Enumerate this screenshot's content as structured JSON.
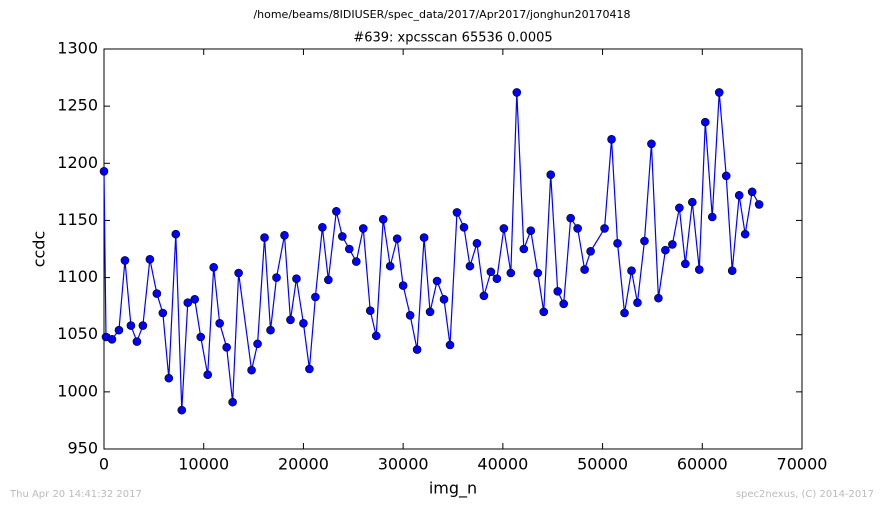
{
  "chart_data": {
    "type": "line",
    "suptitle": "/home/beams/8IDIUSER/spec_data/2017/Apr2017/jonghun20170418",
    "title": "#639: xpcsscan 65536 0.0005",
    "xlabel": "img_n",
    "ylabel": "ccdc",
    "footer_left": "Thu Apr 20 14:41:32 2017",
    "footer_right": "spec2nexus, (C) 2014-2017",
    "color": "#0000ff",
    "marker": "circle",
    "x": [
      0,
      200,
      800,
      1500,
      2100,
      2700,
      3300,
      3900,
      4600,
      5300,
      5900,
      6500,
      7200,
      7800,
      8400,
      9100,
      9700,
      10400,
      11000,
      11600,
      12300,
      12900,
      13500,
      14800,
      15400,
      16100,
      16700,
      17300,
      18100,
      18700,
      19300,
      20000,
      20600,
      21200,
      21900,
      22500,
      23300,
      23900,
      24600,
      25300,
      26000,
      26700,
      27300,
      28000,
      28700,
      29400,
      30000,
      30700,
      31400,
      32100,
      32700,
      33400,
      34100,
      34700,
      35400,
      36100,
      36700,
      37400,
      38100,
      38800,
      39400,
      40100,
      40800,
      41400,
      42100,
      42800,
      43500,
      44100,
      44800,
      45500,
      46100,
      46800,
      47500,
      48200,
      48800,
      50200,
      50900,
      51500,
      52200,
      52900,
      53500,
      54200,
      54900,
      55600,
      56300,
      57000,
      57700,
      58300,
      59000,
      59700,
      60300,
      61000,
      61700,
      62400,
      63000,
      63700,
      64300,
      65000,
      65700
    ],
    "values": [
      1193,
      1048,
      1046,
      1054,
      1115,
      1058,
      1044,
      1058,
      1116,
      1086,
      1069,
      1012,
      1138,
      984,
      1078,
      1081,
      1048,
      1015,
      1109,
      1060,
      1039,
      991,
      1104,
      1019,
      1042,
      1135,
      1054,
      1100,
      1137,
      1063,
      1099,
      1060,
      1020,
      1083,
      1144,
      1098,
      1158,
      1136,
      1125,
      1114,
      1143,
      1071,
      1049,
      1151,
      1110,
      1134,
      1093,
      1067,
      1037,
      1135,
      1070,
      1097,
      1081,
      1041,
      1157,
      1144,
      1110,
      1130,
      1084,
      1105,
      1099,
      1143,
      1104,
      1262,
      1125,
      1141,
      1104,
      1070,
      1190,
      1088,
      1077,
      1152,
      1143,
      1107,
      1123,
      1143,
      1221,
      1130,
      1069,
      1106,
      1078,
      1132,
      1217,
      1082,
      1124,
      1129,
      1161,
      1112,
      1166,
      1107,
      1236,
      1153,
      1262,
      1189,
      1106,
      1172,
      1138,
      1175,
      1164
    ],
    "xlim": [
      0,
      70000
    ],
    "ylim": [
      950,
      1300
    ],
    "xticks": [
      0,
      10000,
      20000,
      30000,
      40000,
      50000,
      60000,
      70000
    ],
    "yticks": [
      950,
      1000,
      1050,
      1100,
      1150,
      1200,
      1250,
      1300
    ]
  }
}
